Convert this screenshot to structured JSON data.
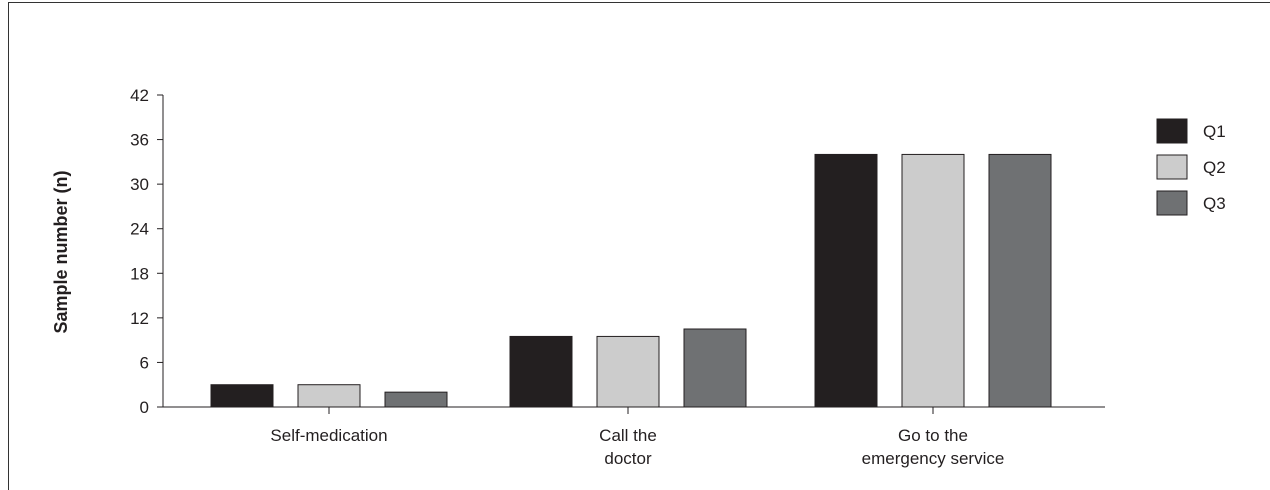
{
  "chart_data": {
    "type": "bar",
    "categories": [
      [
        "Self-medication"
      ],
      [
        "Call the",
        "doctor"
      ],
      [
        "Go to the",
        "emergency service"
      ]
    ],
    "series": [
      {
        "name": "Q1",
        "values": [
          3,
          9.5,
          34
        ],
        "color": "#231f20"
      },
      {
        "name": "Q2",
        "values": [
          3,
          9.5,
          34
        ],
        "color": "#cccccc"
      },
      {
        "name": "Q3",
        "values": [
          2,
          10.5,
          34
        ],
        "color": "#6f7173"
      }
    ],
    "xlabel": "",
    "ylabel": "Sample number (n)",
    "ylim": [
      0,
      42
    ],
    "yticks": [
      0,
      6,
      12,
      18,
      24,
      30,
      36,
      42
    ],
    "grid": false,
    "legend_position": "top-right"
  }
}
